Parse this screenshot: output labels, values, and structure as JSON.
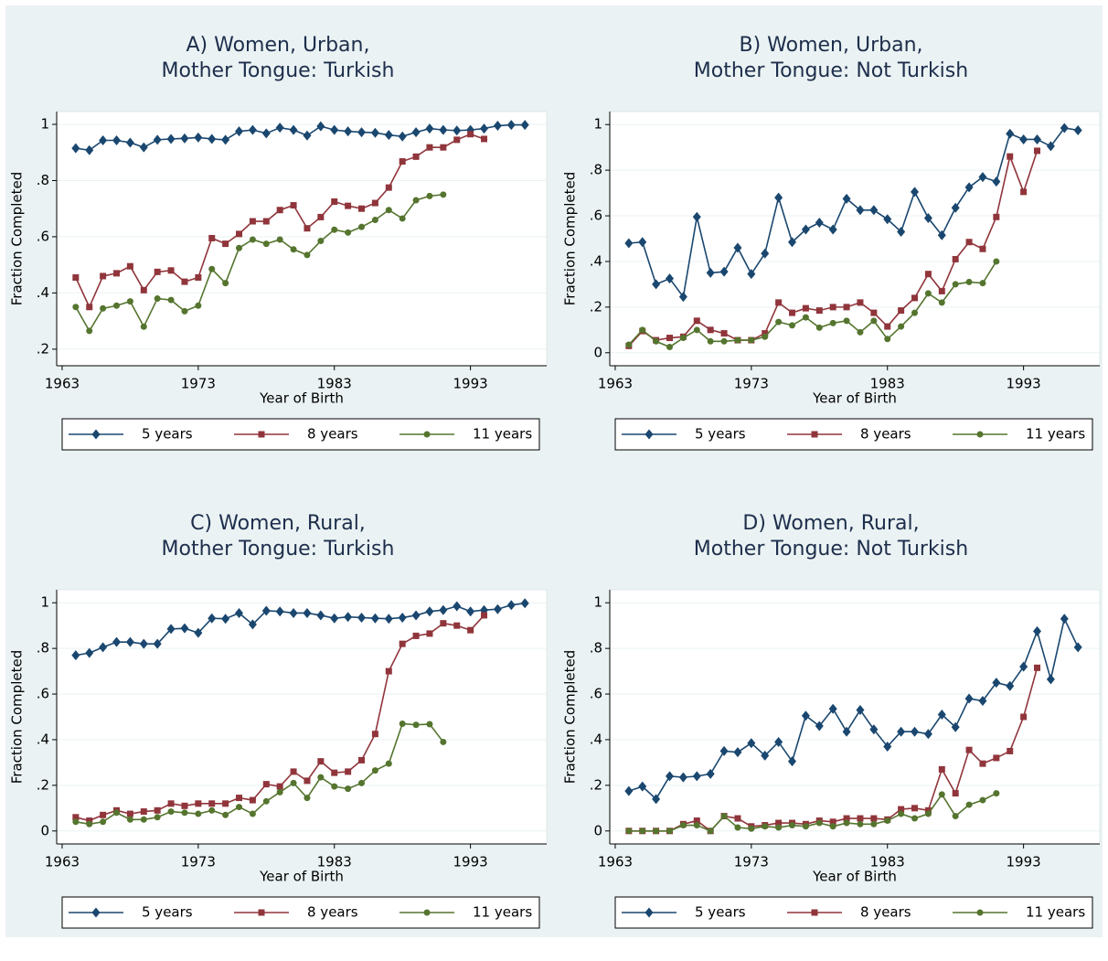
{
  "chart_data": [
    {
      "type": "line",
      "title": [
        "A) Women, Urban,",
        "Mother Tongue: Turkish"
      ],
      "xlabel": "Year of Birth",
      "ylabel": "Fraction Completed",
      "x": [
        1964,
        1965,
        1966,
        1967,
        1968,
        1969,
        1970,
        1971,
        1972,
        1973,
        1974,
        1975,
        1976,
        1977,
        1978,
        1979,
        1980,
        1981,
        1982,
        1983,
        1984,
        1985,
        1986,
        1987,
        1988,
        1989,
        1990,
        1991,
        1992,
        1993,
        1994,
        1995,
        1996,
        1997
      ],
      "xlim": [
        1962.6,
        1998.6
      ],
      "xticks": [
        1963,
        1973,
        1983,
        1993
      ],
      "ylim": [
        0.141,
        1.0455
      ],
      "yticks": [
        {
          "value": 0.2,
          "label": ".2"
        },
        {
          "value": 0.4,
          "label": ".4"
        },
        {
          "value": 0.6,
          "label": ".6"
        },
        {
          "value": 0.8,
          "label": ".8"
        },
        1
      ],
      "grid": true,
      "legend": "bottom",
      "series": [
        {
          "name": "5 years",
          "color": "#1a476f",
          "marker": "diamond",
          "values": [
            0.915,
            0.908,
            0.943,
            0.943,
            0.935,
            0.918,
            0.945,
            0.948,
            0.95,
            0.953,
            0.948,
            0.945,
            0.975,
            0.98,
            0.968,
            0.988,
            0.98,
            0.96,
            0.993,
            0.98,
            0.975,
            0.972,
            0.97,
            0.962,
            0.957,
            0.972,
            0.985,
            0.98,
            0.978,
            0.98,
            0.985,
            0.995,
            0.998,
            0.998
          ]
        },
        {
          "name": "8 years",
          "color": "#90353b",
          "marker": "square",
          "values": [
            0.455,
            0.35,
            0.46,
            0.47,
            0.495,
            0.41,
            0.475,
            0.48,
            0.44,
            0.455,
            0.595,
            0.575,
            0.61,
            0.655,
            0.655,
            0.695,
            0.712,
            0.63,
            0.67,
            0.725,
            0.71,
            0.7,
            0.72,
            0.775,
            0.868,
            0.885,
            0.918,
            0.918,
            0.945,
            0.965,
            0.948,
            null,
            null,
            null
          ]
        },
        {
          "name": "11 years",
          "color": "#55752f",
          "marker": "circle",
          "values": [
            0.35,
            0.265,
            0.345,
            0.355,
            0.37,
            0.28,
            0.38,
            0.375,
            0.335,
            0.355,
            0.485,
            0.435,
            0.56,
            0.59,
            0.575,
            0.59,
            0.555,
            0.535,
            0.585,
            0.625,
            0.615,
            0.635,
            0.66,
            0.695,
            0.665,
            0.73,
            0.745,
            0.75,
            null,
            null,
            null,
            null,
            null,
            null
          ]
        }
      ]
    },
    {
      "type": "line",
      "title": [
        "B) Women, Urban,",
        "Mother Tongue: Not Turkish"
      ],
      "xlabel": "Year of Birth",
      "ylabel": "Fraction Completed",
      "x": [
        1964,
        1965,
        1966,
        1967,
        1968,
        1969,
        1970,
        1971,
        1972,
        1973,
        1974,
        1975,
        1976,
        1977,
        1978,
        1979,
        1980,
        1981,
        1982,
        1983,
        1984,
        1985,
        1986,
        1987,
        1988,
        1989,
        1990,
        1991,
        1992,
        1993,
        1994,
        1995,
        1996,
        1997
      ],
      "xlim": [
        1962.6,
        1998.6
      ],
      "xticks": [
        1963,
        1973,
        1983,
        1993
      ],
      "ylim": [
        -0.057,
        1.057
      ],
      "yticks": [
        0,
        {
          "value": 0.2,
          "label": ".2"
        },
        {
          "value": 0.4,
          "label": ".4"
        },
        {
          "value": 0.6,
          "label": ".6"
        },
        {
          "value": 0.8,
          "label": ".8"
        },
        1
      ],
      "grid": true,
      "legend": "bottom",
      "series": [
        {
          "name": "5 years",
          "color": "#1a476f",
          "marker": "diamond",
          "values": [
            0.48,
            0.485,
            0.3,
            0.325,
            0.245,
            0.595,
            0.35,
            0.355,
            0.46,
            0.345,
            0.435,
            0.68,
            0.485,
            0.54,
            0.57,
            0.54,
            0.675,
            0.625,
            0.625,
            0.585,
            0.53,
            0.705,
            0.59,
            0.515,
            0.635,
            0.725,
            0.77,
            0.75,
            0.96,
            0.935,
            0.935,
            0.905,
            0.985,
            0.975
          ]
        },
        {
          "name": "8 years",
          "color": "#90353b",
          "marker": "square",
          "values": [
            0.03,
            0.095,
            0.055,
            0.065,
            0.07,
            0.14,
            0.1,
            0.085,
            0.055,
            0.055,
            0.085,
            0.22,
            0.175,
            0.195,
            0.185,
            0.2,
            0.2,
            0.22,
            0.175,
            0.115,
            0.185,
            0.24,
            0.345,
            0.27,
            0.41,
            0.485,
            0.455,
            0.595,
            0.86,
            0.705,
            0.885,
            null,
            null,
            null
          ]
        },
        {
          "name": "11 years",
          "color": "#55752f",
          "marker": "circle",
          "values": [
            0.035,
            0.1,
            0.05,
            0.025,
            0.065,
            0.1,
            0.05,
            0.05,
            0.055,
            0.055,
            0.07,
            0.135,
            0.12,
            0.155,
            0.11,
            0.13,
            0.14,
            0.09,
            0.14,
            0.06,
            0.115,
            0.175,
            0.26,
            0.22,
            0.3,
            0.31,
            0.305,
            0.4,
            null,
            null,
            null,
            null,
            null,
            null
          ]
        }
      ]
    },
    {
      "type": "line",
      "title": [
        "C) Women, Rural,",
        "Mother Tongue: Turkish"
      ],
      "xlabel": "Year of Birth",
      "ylabel": "Fraction Completed",
      "x": [
        1964,
        1965,
        1966,
        1967,
        1968,
        1969,
        1970,
        1971,
        1972,
        1973,
        1974,
        1975,
        1976,
        1977,
        1978,
        1979,
        1980,
        1981,
        1982,
        1983,
        1984,
        1985,
        1986,
        1987,
        1988,
        1989,
        1990,
        1991,
        1992,
        1993,
        1994,
        1995,
        1996,
        1997
      ],
      "xlim": [
        1962.6,
        1998.6
      ],
      "xticks": [
        1963,
        1973,
        1983,
        1993
      ],
      "ylim": [
        -0.057,
        1.057
      ],
      "yticks": [
        0,
        {
          "value": 0.2,
          "label": ".2"
        },
        {
          "value": 0.4,
          "label": ".4"
        },
        {
          "value": 0.6,
          "label": ".6"
        },
        {
          "value": 0.8,
          "label": ".8"
        },
        1
      ],
      "grid": true,
      "legend": "bottom",
      "series": [
        {
          "name": "5 years",
          "color": "#1a476f",
          "marker": "diamond",
          "values": [
            0.77,
            0.78,
            0.805,
            0.828,
            0.828,
            0.82,
            0.82,
            0.885,
            0.888,
            0.868,
            0.932,
            0.93,
            0.955,
            0.905,
            0.965,
            0.962,
            0.955,
            0.955,
            0.945,
            0.932,
            0.938,
            0.935,
            0.932,
            0.93,
            0.935,
            0.945,
            0.962,
            0.968,
            0.985,
            0.962,
            0.968,
            0.972,
            0.99,
            0.998
          ]
        },
        {
          "name": "8 years",
          "color": "#90353b",
          "marker": "square",
          "values": [
            0.06,
            0.045,
            0.07,
            0.09,
            0.075,
            0.085,
            0.09,
            0.12,
            0.11,
            0.12,
            0.12,
            0.12,
            0.145,
            0.135,
            0.205,
            0.195,
            0.26,
            0.22,
            0.305,
            0.255,
            0.26,
            0.31,
            0.425,
            0.7,
            0.82,
            0.855,
            0.865,
            0.91,
            0.9,
            0.88,
            0.945,
            null,
            null,
            null
          ]
        },
        {
          "name": "11 years",
          "color": "#55752f",
          "marker": "circle",
          "values": [
            0.04,
            0.03,
            0.04,
            0.08,
            0.05,
            0.05,
            0.06,
            0.085,
            0.08,
            0.075,
            0.09,
            0.07,
            0.105,
            0.075,
            0.13,
            0.17,
            0.21,
            0.145,
            0.235,
            0.195,
            0.185,
            0.21,
            0.265,
            0.295,
            0.47,
            0.465,
            0.468,
            0.39,
            null,
            null,
            null,
            null,
            null,
            null
          ]
        }
      ]
    },
    {
      "type": "line",
      "title": [
        "D) Women, Rural,",
        "Mother Tongue: Not Turkish"
      ],
      "xlabel": "Year of Birth",
      "ylabel": "Fraction Completed",
      "x": [
        1964,
        1965,
        1966,
        1967,
        1968,
        1969,
        1970,
        1971,
        1972,
        1973,
        1974,
        1975,
        1976,
        1977,
        1978,
        1979,
        1980,
        1981,
        1982,
        1983,
        1984,
        1985,
        1986,
        1987,
        1988,
        1989,
        1990,
        1991,
        1992,
        1993,
        1994,
        1995,
        1996,
        1997
      ],
      "xlim": [
        1962.6,
        1998.6
      ],
      "xticks": [
        1963,
        1973,
        1983,
        1993
      ],
      "ylim": [
        -0.057,
        1.057
      ],
      "yticks": [
        0,
        {
          "value": 0.2,
          "label": ".2"
        },
        {
          "value": 0.4,
          "label": ".4"
        },
        {
          "value": 0.6,
          "label": ".6"
        },
        {
          "value": 0.8,
          "label": ".8"
        },
        1
      ],
      "grid": true,
      "legend": "bottom",
      "series": [
        {
          "name": "5 years",
          "color": "#1a476f",
          "marker": "diamond",
          "values": [
            0.175,
            0.195,
            0.14,
            0.24,
            0.235,
            0.24,
            0.25,
            0.35,
            0.345,
            0.385,
            0.33,
            0.39,
            0.305,
            0.505,
            0.46,
            0.535,
            0.435,
            0.53,
            0.445,
            0.37,
            0.435,
            0.435,
            0.425,
            0.51,
            0.455,
            0.58,
            0.57,
            0.65,
            0.635,
            0.72,
            0.875,
            0.665,
            0.93,
            0.805
          ]
        },
        {
          "name": "8 years",
          "color": "#90353b",
          "marker": "square",
          "values": [
            0,
            0,
            0,
            0,
            0.03,
            0.045,
            0,
            0.065,
            0.055,
            0.02,
            0.025,
            0.035,
            0.035,
            0.03,
            0.045,
            0.04,
            0.055,
            0.055,
            0.055,
            0.05,
            0.095,
            0.1,
            0.09,
            0.27,
            0.165,
            0.355,
            0.295,
            0.32,
            0.35,
            0.5,
            0.715,
            null,
            null,
            null
          ]
        },
        {
          "name": "11 years",
          "color": "#55752f",
          "marker": "circle",
          "values": [
            0,
            0,
            0,
            0,
            0.025,
            0.025,
            0,
            0.065,
            0.015,
            0.01,
            0.02,
            0.015,
            0.025,
            0.02,
            0.035,
            0.02,
            0.035,
            0.03,
            0.03,
            0.045,
            0.075,
            0.055,
            0.075,
            0.16,
            0.065,
            0.115,
            0.135,
            0.165,
            null,
            null,
            null,
            null,
            null,
            null
          ]
        }
      ]
    }
  ]
}
